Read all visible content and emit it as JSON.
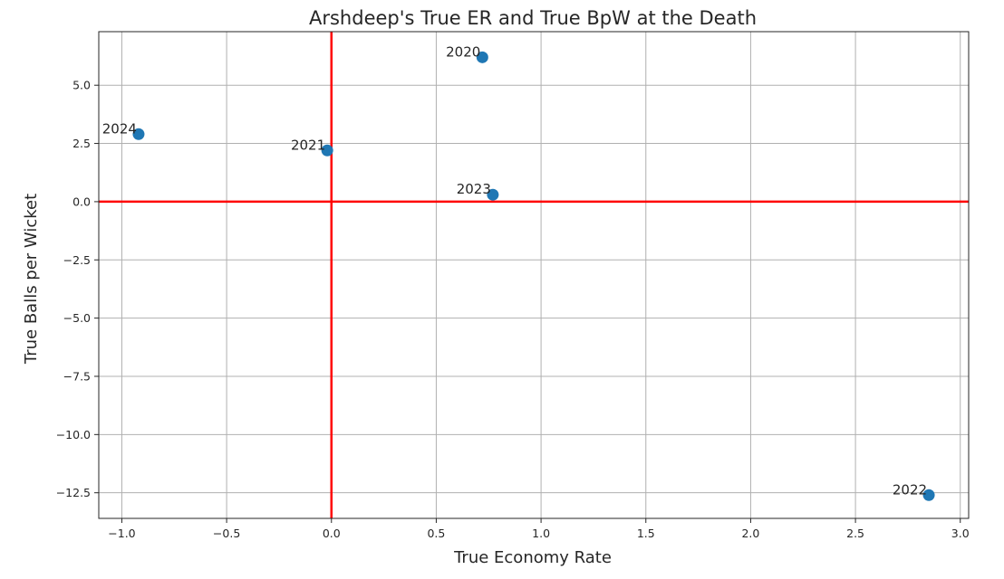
{
  "chart_data": {
    "type": "scatter",
    "title": "Arshdeep's True ER and True BpW at the Death",
    "xlabel": "True Economy Rate",
    "ylabel": "True Balls per Wicket",
    "xlim": [
      -1.11,
      3.04
    ],
    "ylim": [
      -13.6,
      7.3
    ],
    "xticks": [
      -1.0,
      -0.5,
      0.0,
      0.5,
      1.0,
      1.5,
      2.0,
      2.5,
      3.0
    ],
    "xtick_labels": [
      "−1.0",
      "−0.5",
      "0.0",
      "0.5",
      "1.0",
      "1.5",
      "2.0",
      "2.5",
      "3.0"
    ],
    "yticks": [
      -12.5,
      -10.0,
      -7.5,
      -5.0,
      -2.5,
      0.0,
      2.5,
      5.0
    ],
    "ytick_labels": [
      "−12.5",
      "−10.0",
      "−7.5",
      "−5.0",
      "−2.5",
      "0.0",
      "2.5",
      "5.0"
    ],
    "grid": true,
    "reference_lines": {
      "x": 0,
      "y": 0,
      "color": "#ff0000"
    },
    "marker_color": "#1f77b4",
    "points": [
      {
        "label": "2020",
        "x": 0.72,
        "y": 6.2
      },
      {
        "label": "2021",
        "x": -0.02,
        "y": 2.2
      },
      {
        "label": "2022",
        "x": 2.85,
        "y": -12.6
      },
      {
        "label": "2023",
        "x": 0.77,
        "y": 0.3
      },
      {
        "label": "2024",
        "x": -0.92,
        "y": 2.9
      }
    ]
  }
}
